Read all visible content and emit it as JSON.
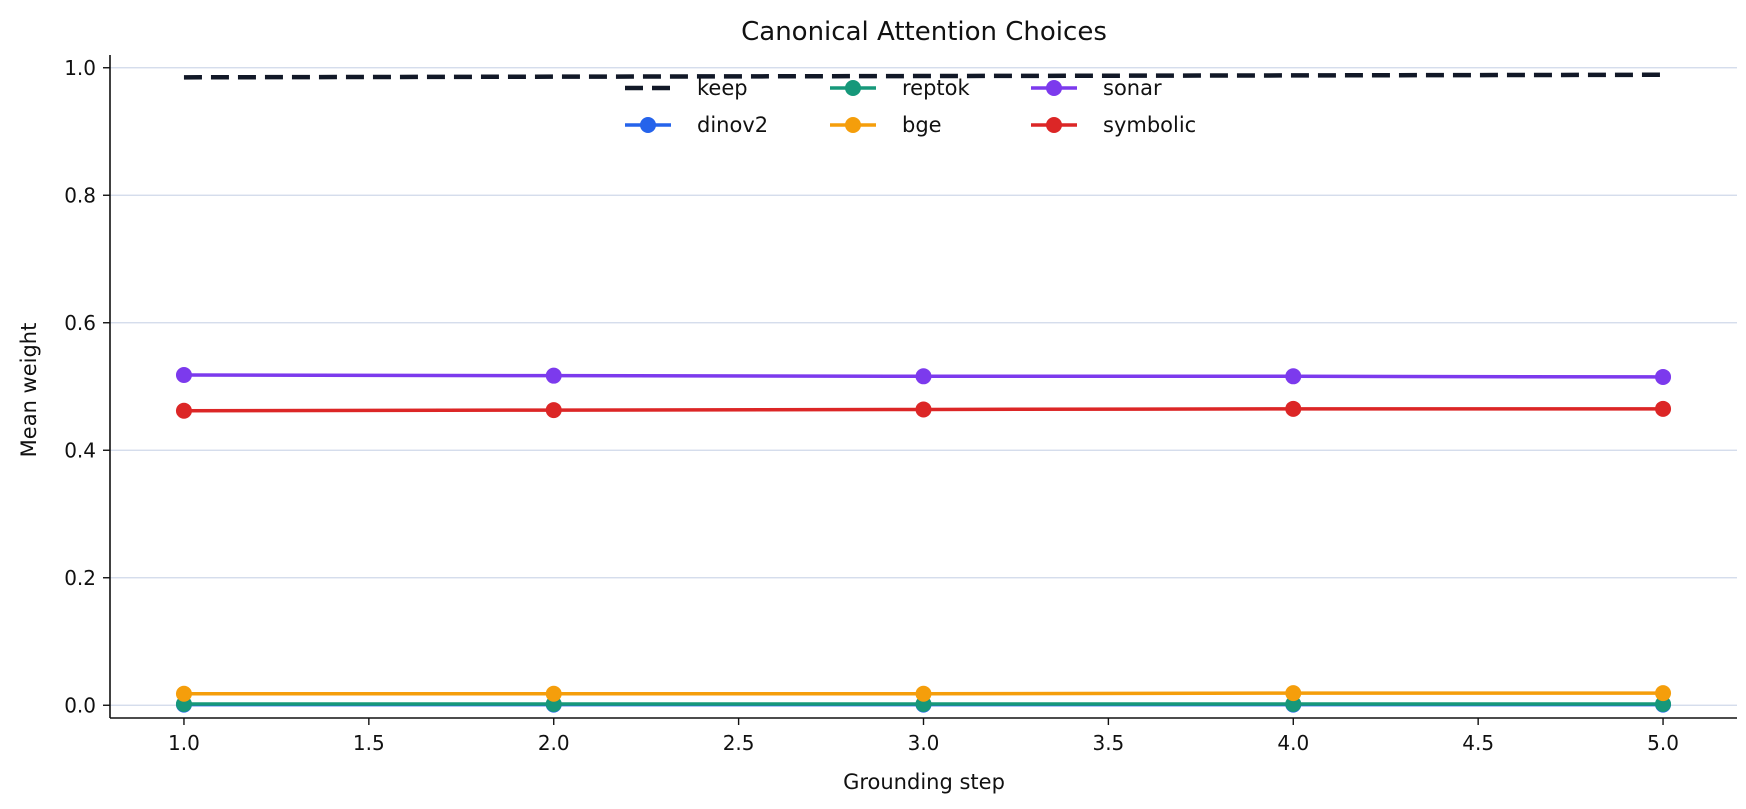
{
  "chart_data": {
    "type": "line",
    "title": "Canonical Attention Choices",
    "xlabel": "Grounding step",
    "ylabel": "Mean weight",
    "xlim": [
      0.8,
      5.2
    ],
    "ylim": [
      -0.02,
      1.02
    ],
    "xticks": [
      1.0,
      1.5,
      2.0,
      2.5,
      3.0,
      3.5,
      4.0,
      4.5,
      5.0
    ],
    "xtick_labels": [
      "1.0",
      "1.5",
      "2.0",
      "2.5",
      "3.0",
      "3.5",
      "4.0",
      "4.5",
      "5.0"
    ],
    "yticks": [
      0.0,
      0.2,
      0.4,
      0.6,
      0.8,
      1.0
    ],
    "ytick_labels": [
      "0.0",
      "0.2",
      "0.4",
      "0.6",
      "0.8",
      "1.0"
    ],
    "grid": "horizontal",
    "legend_position": "top-center",
    "x": [
      1.0,
      2.0,
      3.0,
      4.0,
      5.0
    ],
    "series": [
      {
        "name": "keep",
        "color": "#111827",
        "style": "dashed",
        "markers": false,
        "values": [
          0.985,
          0.986,
          0.987,
          0.988,
          0.989
        ]
      },
      {
        "name": "dinov2",
        "color": "#2563eb",
        "style": "solid",
        "markers": true,
        "values": [
          0.001,
          0.001,
          0.001,
          0.001,
          0.001
        ]
      },
      {
        "name": "reptok",
        "color": "#16987a",
        "style": "solid",
        "markers": true,
        "values": [
          0.002,
          0.002,
          0.002,
          0.002,
          0.002
        ]
      },
      {
        "name": "bge",
        "color": "#f59e0b",
        "style": "solid",
        "markers": true,
        "values": [
          0.018,
          0.018,
          0.018,
          0.019,
          0.019
        ]
      },
      {
        "name": "sonar",
        "color": "#7c3aed",
        "style": "solid",
        "markers": true,
        "values": [
          0.518,
          0.517,
          0.516,
          0.516,
          0.515
        ]
      },
      {
        "name": "symbolic",
        "color": "#dc2626",
        "style": "solid",
        "markers": true,
        "values": [
          0.462,
          0.463,
          0.464,
          0.465,
          0.465
        ]
      }
    ]
  }
}
